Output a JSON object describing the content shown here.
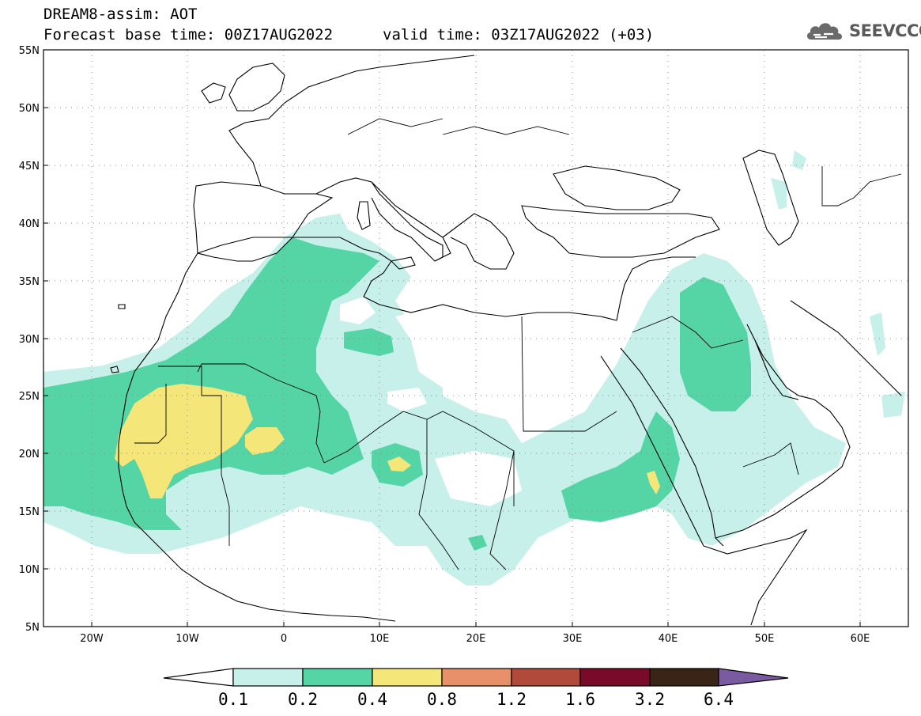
{
  "title": {
    "line1": "DREAM8-assim: AOT",
    "line2": "Forecast base time: 00Z17AUG2022",
    "valid": "valid time: 03Z17AUG2022 (+03)"
  },
  "logo": {
    "text": "SEEVCCC",
    "icon": "cloud-icon"
  },
  "map": {
    "lat_labels": [
      "55N",
      "50N",
      "45N",
      "40N",
      "35N",
      "30N",
      "25N",
      "20N",
      "15N",
      "10N",
      "5N"
    ],
    "lon_labels": [
      "20W",
      "10W",
      "0",
      "10E",
      "20E",
      "30E",
      "40E",
      "50E",
      "60E"
    ],
    "lon_range": [
      -25,
      65
    ],
    "lat_range": [
      5,
      55
    ],
    "grid": "dotted"
  },
  "colorbar": {
    "labels": [
      "0.1",
      "0.2",
      "0.4",
      "0.8",
      "1.2",
      "1.6",
      "3.2",
      "6.4"
    ],
    "colors": [
      "#ffffff",
      "#c8f0ea",
      "#55d4a6",
      "#f5e67a",
      "#e8906a",
      "#b24a3c",
      "#7a0a2a",
      "#3a2418",
      "#7a5aa0"
    ]
  }
}
